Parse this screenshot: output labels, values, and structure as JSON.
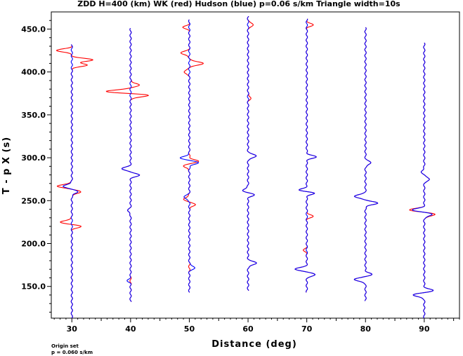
{
  "chart_data": {
    "type": "line",
    "title": "ZDD H=400 (km) WK (red) Hudson (blue) p=0.06 s/km Triangle width=10s",
    "xlabel": "Distance (deg)",
    "ylabel": "T - p X (s)",
    "xlim": [
      26.5,
      96
    ],
    "ylim": [
      113,
      470
    ],
    "x_ticks": [
      30,
      40,
      50,
      60,
      70,
      80,
      90
    ],
    "y_ticks": [
      150,
      200,
      250,
      300,
      350,
      400,
      450
    ],
    "x_tick_labels": [
      "30",
      "40",
      "50",
      "60",
      "70",
      "80",
      "90"
    ],
    "y_tick_labels": [
      "150.0",
      "200.0",
      "250.0",
      "300.0",
      "350.0",
      "400.0",
      "450.0"
    ],
    "grid": false,
    "series": [
      {
        "name": "WK",
        "color": "#ff0000"
      },
      {
        "name": "Hudson",
        "color": "#0000ff"
      }
    ],
    "traces": [
      {
        "distance": 30,
        "t_start": 113,
        "t_end": 432,
        "wk": [
          [
            425,
            -2.5
          ],
          [
            414,
            3.5
          ],
          [
            408,
            2.5
          ],
          [
            267,
            -2.5
          ],
          [
            260,
            1.5
          ],
          [
            225,
            -2.0
          ],
          [
            220,
            1.5
          ]
        ],
        "hudson": [
          [
            267,
            -1.5
          ],
          [
            260,
            1.0
          ]
        ]
      },
      {
        "distance": 40,
        "t_start": 132,
        "t_end": 451,
        "wk": [
          [
            385,
            1.5
          ],
          [
            377,
            -4.5
          ],
          [
            373,
            3.5
          ],
          [
            287,
            -1.5
          ],
          [
            280,
            1.5
          ],
          [
            238,
            -0.5
          ]
        ],
        "hudson": [
          [
            287,
            -1.5
          ],
          [
            280,
            1.5
          ],
          [
            238,
            -0.5
          ],
          [
            157,
            -0.5
          ]
        ]
      },
      {
        "distance": 50,
        "t_start": 143,
        "t_end": 461,
        "wk": [
          [
            452,
            -1.0
          ],
          [
            422,
            -1.5
          ],
          [
            410,
            2.5
          ],
          [
            400,
            -1.0
          ],
          [
            296,
            1.5
          ],
          [
            290,
            -1.0
          ],
          [
            252,
            -1.0
          ],
          [
            245,
            1.0
          ]
        ],
        "hudson": [
          [
            300,
            -1.5
          ],
          [
            294,
            1.5
          ],
          [
            254,
            -1.0
          ],
          [
            172,
            1.0
          ]
        ]
      },
      {
        "distance": 60,
        "t_start": 145,
        "t_end": 465,
        "wk": [
          [
            455,
            1.0
          ],
          [
            370,
            0.5
          ],
          [
            302,
            1.5
          ],
          [
            262,
            -1.0
          ],
          [
            257,
            1.0
          ],
          [
            177,
            1.5
          ]
        ],
        "hudson": [
          [
            302,
            1.5
          ],
          [
            262,
            -1.0
          ],
          [
            257,
            1.0
          ],
          [
            177,
            1.5
          ]
        ]
      },
      {
        "distance": 70,
        "t_start": 143,
        "t_end": 462,
        "wk": [
          [
            455,
            1.0
          ],
          [
            301,
            1.5
          ],
          [
            262,
            -1.5
          ],
          [
            259,
            1.5
          ],
          [
            232,
            1.0
          ],
          [
            192,
            -0.5
          ],
          [
            170,
            -2.0
          ],
          [
            164,
            1.5
          ]
        ],
        "hudson": [
          [
            301,
            1.5
          ],
          [
            262,
            -1.5
          ],
          [
            259,
            1.5
          ],
          [
            170,
            -2.0
          ],
          [
            164,
            1.5
          ]
        ]
      },
      {
        "distance": 80,
        "t_start": 133,
        "t_end": 452,
        "wk": [
          [
            294,
            1.0
          ],
          [
            255,
            -2.0
          ],
          [
            247,
            2.0
          ],
          [
            158,
            -2.0
          ],
          [
            164,
            1.0
          ]
        ],
        "hudson": [
          [
            294,
            1.0
          ],
          [
            255,
            -2.0
          ],
          [
            247,
            2.0
          ],
          [
            158,
            -2.0
          ],
          [
            164,
            1.0
          ]
        ]
      },
      {
        "distance": 90,
        "t_start": 113,
        "t_end": 434,
        "wk": [
          [
            284,
            -0.5
          ],
          [
            275,
            1.0
          ],
          [
            239,
            -2.5
          ],
          [
            234,
            2.0
          ],
          [
            145,
            1.5
          ],
          [
            140,
            -2.0
          ]
        ],
        "hudson": [
          [
            284,
            -0.5
          ],
          [
            275,
            1.0
          ],
          [
            239,
            -2.0
          ],
          [
            234,
            1.5
          ],
          [
            145,
            1.5
          ],
          [
            140,
            -2.0
          ]
        ]
      }
    ]
  },
  "footer": {
    "line1": "Origin set",
    "line2": "p = 0.060 s/km"
  }
}
